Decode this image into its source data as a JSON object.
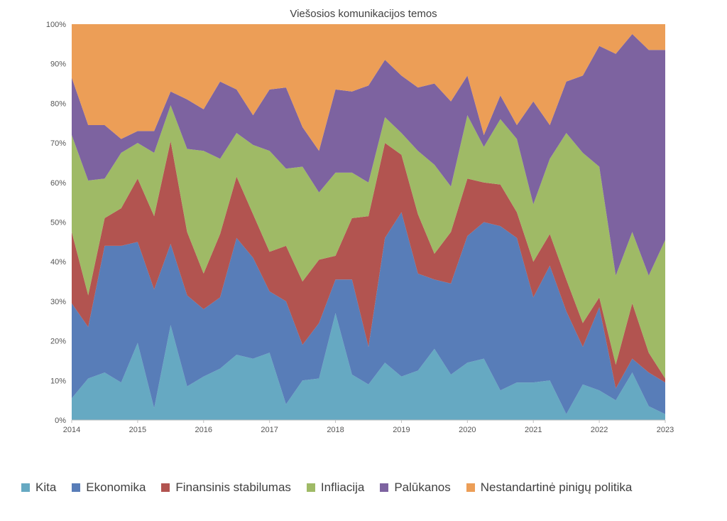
{
  "chart_data": {
    "type": "area",
    "stacked": true,
    "normalized": true,
    "title": "Viešosios komunikacijos temos",
    "x": [
      2014.0,
      2014.25,
      2014.5,
      2014.75,
      2015.0,
      2015.25,
      2015.5,
      2015.75,
      2016.0,
      2016.25,
      2016.5,
      2016.75,
      2017.0,
      2017.25,
      2017.5,
      2017.75,
      2018.0,
      2018.25,
      2018.5,
      2018.75,
      2019.0,
      2019.25,
      2019.5,
      2019.75,
      2020.0,
      2020.25,
      2020.5,
      2020.75,
      2021.0,
      2021.25,
      2021.5,
      2021.75,
      2022.0,
      2022.25,
      2022.5,
      2022.75,
      2023.0
    ],
    "x_ticks": [
      "2014",
      "2015",
      "2016",
      "2017",
      "2018",
      "2019",
      "2020",
      "2021",
      "2022",
      "2023"
    ],
    "y_ticks": [
      "0%",
      "10%",
      "20%",
      "30%",
      "40%",
      "50%",
      "60%",
      "70%",
      "80%",
      "90%",
      "100%"
    ],
    "ylim": [
      0,
      100
    ],
    "legend_position": "bottom",
    "series": [
      {
        "name": "Kita",
        "color": "#66a9c2",
        "values": [
          5.5,
          10.5,
          12,
          9.5,
          19.5,
          3,
          24,
          8.5,
          11,
          13,
          16.5,
          15.5,
          17,
          4,
          10,
          10.5,
          27,
          11.5,
          9,
          14.5,
          11,
          12.5,
          18,
          11.5,
          14.5,
          15.5,
          7.5,
          9.5,
          9.5,
          10,
          1.5,
          9,
          7.5,
          5,
          12,
          3.5,
          1.5
        ]
      },
      {
        "name": "Ekonomika",
        "color": "#587db8",
        "values": [
          24,
          13,
          32,
          34.5,
          25.5,
          30,
          20.5,
          23,
          17,
          18,
          29.5,
          25.5,
          15.5,
          26,
          9,
          14,
          8.5,
          24,
          9.5,
          31.5,
          41.5,
          24.5,
          17.5,
          23,
          32,
          34.5,
          41.5,
          36.5,
          21.5,
          29,
          26,
          9.5,
          21,
          3,
          3.5,
          8.5,
          8
        ]
      },
      {
        "name": "Finansinis stabilumas",
        "color": "#b25450",
        "values": [
          18,
          8,
          7,
          9.5,
          16,
          18.5,
          26,
          16,
          9,
          16,
          15.5,
          11,
          10,
          14,
          16,
          16,
          6,
          15.5,
          33,
          24,
          14.5,
          15,
          6.5,
          13,
          14.5,
          10,
          10.5,
          6.5,
          9,
          8,
          8,
          6,
          2.5,
          6,
          14,
          5,
          1
        ]
      },
      {
        "name": "Infliacija",
        "color": "#9fba66",
        "values": [
          24.5,
          29,
          10,
          14,
          9,
          16,
          9,
          21,
          31,
          19,
          11,
          17.5,
          25.5,
          19.5,
          29,
          17,
          21,
          11.5,
          8.5,
          6.5,
          5.5,
          16,
          22.5,
          11.5,
          16,
          9,
          16.5,
          18.5,
          14.5,
          19,
          37,
          43,
          33,
          22.5,
          18,
          19.5,
          35
        ]
      },
      {
        "name": "Palūkanos",
        "color": "#7d63a0",
        "values": [
          14.5,
          14,
          13.5,
          3.5,
          3,
          5.5,
          3.5,
          12.5,
          10.5,
          19.5,
          11,
          7.5,
          15.5,
          20.5,
          10,
          10.5,
          21,
          20.5,
          24.5,
          14.5,
          14.5,
          16,
          20.5,
          21.5,
          10,
          3,
          6,
          3.5,
          26,
          8.5,
          13,
          19.5,
          30.5,
          56,
          50,
          57,
          48
        ]
      },
      {
        "name": "Nestandartinė pinigų politika",
        "color": "#ec9e57",
        "values": [
          13.5,
          25.5,
          25.5,
          29,
          27,
          27,
          17,
          19,
          21.5,
          14.5,
          16.5,
          23,
          16.5,
          16,
          26,
          32,
          16.5,
          17,
          15.5,
          9,
          13,
          16,
          15,
          19.5,
          13,
          28,
          18,
          25.5,
          19.5,
          25.5,
          14.5,
          13,
          5.5,
          7.5,
          2.5,
          6.5,
          6.5
        ]
      }
    ]
  }
}
